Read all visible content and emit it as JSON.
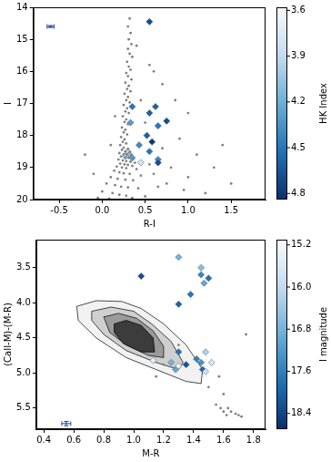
{
  "chart_data": [
    {
      "type": "scatter",
      "xlabel": "R-I",
      "ylabel": "I",
      "xlim": [
        -0.8,
        1.9
      ],
      "ylim": [
        20,
        14
      ],
      "xticks": [
        -0.5,
        {
          "value": 0,
          "label": "0.0"
        },
        0.5,
        {
          "value": 1,
          "label": "1.0"
        },
        1.5
      ],
      "yticks": [
        14,
        15,
        16,
        17,
        18,
        19,
        20
      ],
      "grid": false,
      "series": [
        {
          "color": "#808080",
          "marker": "circle",
          "x": [
            0.32,
            0.3,
            0.33,
            0.31,
            0.34,
            0.3,
            0.32,
            0.35,
            0.29,
            0.31,
            0.33,
            0.28,
            0.3,
            0.34,
            0.27,
            0.31,
            0.29,
            0.33,
            0.26,
            0.3,
            0.28,
            0.32,
            0.25,
            0.29,
            0.27,
            0.31,
            0.24,
            0.28,
            0.26,
            0.3,
            0.23,
            0.27,
            0.25,
            0.29,
            0.22,
            0.26,
            0.24,
            0.28,
            0.21,
            0.25,
            0.3,
            0.23,
            0.27,
            0.32,
            0.2,
            0.25,
            0.29,
            0.34,
            0.22,
            0.27,
            0.31,
            0.36,
            0.19,
            0.24,
            0.28,
            0.33,
            0.38,
            0.21,
            0.26,
            0.3,
            0.35,
            0.17,
            0.23,
            0.28,
            0.4,
            0.14,
            0.2,
            0.25,
            0.32,
            0.45,
            0.1,
            0.18,
            0.27,
            0.36,
            0.05,
            0.15,
            0.22,
            0.3,
            0.42,
            0.0,
            0.12,
            0.2,
            0.28,
            0.5,
            -0.05,
            0.08,
            0.35,
            0.55,
            0.7,
            0.85,
            1.0,
            0.9,
            1.1,
            1.3,
            1.5,
            0.6,
            0.75,
            0.95,
            1.2,
            0.45,
            0.5,
            0.7,
            0.8,
            1.0,
            -0.2,
            -0.1,
            0.15,
            0.1,
            0.6,
            0.4,
            1.4,
            0.55,
            0.65
          ],
          "y": [
            14.35,
            14.6,
            14.8,
            15.0,
            15.15,
            15.3,
            15.45,
            15.55,
            15.7,
            15.85,
            15.95,
            16.05,
            16.15,
            16.25,
            16.35,
            16.45,
            16.55,
            16.62,
            16.7,
            16.8,
            16.9,
            16.97,
            17.05,
            17.15,
            17.25,
            17.3,
            17.4,
            17.5,
            17.58,
            17.65,
            17.75,
            17.82,
            17.9,
            17.97,
            18.05,
            18.12,
            18.2,
            18.25,
            18.3,
            18.38,
            18.42,
            18.45,
            18.5,
            18.52,
            18.55,
            18.58,
            18.6,
            18.62,
            18.65,
            18.68,
            18.7,
            18.72,
            18.75,
            18.78,
            18.8,
            18.82,
            18.85,
            18.88,
            18.9,
            18.92,
            18.95,
            18.97,
            19.0,
            19.02,
            19.05,
            19.1,
            19.15,
            19.18,
            19.2,
            19.25,
            19.3,
            19.35,
            19.38,
            19.4,
            19.5,
            19.55,
            19.6,
            19.62,
            19.65,
            19.75,
            19.8,
            19.85,
            19.88,
            19.9,
            19.95,
            19.97,
            19.95,
            15.8,
            16.4,
            16.9,
            17.3,
            18.1,
            18.6,
            19.0,
            19.5,
            19.2,
            19.5,
            19.7,
            19.8,
            16.9,
            17.6,
            18.4,
            19.0,
            19.3,
            18.6,
            19.2,
            17.4,
            18.3,
            16.0,
            15.2,
            18.3,
            18.9,
            19.6
          ]
        },
        {
          "marker": "diamond",
          "x": [
            0.55,
            0.35,
            0.33,
            0.55,
            0.62,
            0.65,
            0.75,
            0.52,
            0.43,
            0.58,
            0.55,
            0.3,
            0.32,
            0.35,
            0.65,
            0.65,
            0.27,
            0.45
          ],
          "y": [
            14.45,
            17.1,
            17.6,
            17.3,
            17.1,
            17.7,
            17.55,
            18.0,
            18.3,
            18.2,
            18.5,
            18.5,
            18.6,
            18.7,
            18.75,
            18.85,
            18.65,
            18.85
          ],
          "color_values": [
            4.7,
            4.5,
            4.3,
            4.6,
            4.6,
            4.5,
            4.7,
            4.6,
            4.4,
            4.8,
            4.5,
            3.9,
            4.1,
            4.3,
            4.4,
            4.7,
            4.0,
            3.8
          ]
        }
      ],
      "error_bar": {
        "x": -0.6,
        "y": 14.6,
        "xerr": 0.04,
        "yerr": 0.03
      },
      "colorbar": {
        "label": "HK Index",
        "range": [
          4.84,
          3.58
        ],
        "ticks": [
          3.6,
          3.9,
          4.2,
          4.5,
          4.8
        ],
        "colors": [
          "#f7fbff",
          "#c6dbef",
          "#6baed6",
          "#2171b5",
          "#08306b"
        ]
      }
    },
    {
      "type": "scatter",
      "xlabel": "M-R",
      "ylabel": "(CaII-M)-(M-R)",
      "xlim": [
        0.35,
        1.88
      ],
      "ylim": [
        5.8,
        3.1
      ],
      "xticks": [
        0.4,
        0.6,
        0.8,
        {
          "value": 1,
          "label": "1.0"
        },
        1.2,
        1.4,
        1.6,
        1.8
      ],
      "yticks": [
        3.5,
        {
          "value": 4,
          "label": "4.0"
        },
        4.5,
        {
          "value": 5,
          "label": "5.0"
        },
        5.5
      ],
      "grid": false,
      "contours": [
        {
          "color": "#f2f2f2",
          "x": [
            0.62,
            0.75,
            0.92,
            1.05,
            1.2,
            1.35,
            1.46,
            1.45,
            1.35,
            1.15,
            0.95,
            0.75,
            0.63,
            0.62
          ],
          "y": [
            4.05,
            3.97,
            3.98,
            4.08,
            4.3,
            4.6,
            4.95,
            5.15,
            5.12,
            4.95,
            4.78,
            4.5,
            4.25,
            4.05
          ]
        },
        {
          "color": "#cfcfcf",
          "x": [
            0.72,
            0.85,
            1.0,
            1.12,
            1.25,
            1.33,
            1.3,
            1.15,
            0.95,
            0.8,
            0.72,
            0.72
          ],
          "y": [
            4.12,
            4.06,
            4.12,
            4.3,
            4.55,
            4.85,
            4.95,
            4.85,
            4.68,
            4.45,
            4.25,
            4.12
          ]
        },
        {
          "color": "#9a9a9a",
          "x": [
            0.8,
            0.9,
            1.02,
            1.13,
            1.2,
            1.2,
            1.1,
            0.95,
            0.84,
            0.8
          ],
          "y": [
            4.2,
            4.15,
            4.22,
            4.4,
            4.62,
            4.78,
            4.75,
            4.6,
            4.42,
            4.2
          ]
        },
        {
          "color": "#3c3c3c",
          "x": [
            0.87,
            0.95,
            1.05,
            1.13,
            1.14,
            1.05,
            0.93,
            0.87,
            0.87
          ],
          "y": [
            4.3,
            4.25,
            4.32,
            4.5,
            4.7,
            4.7,
            4.58,
            4.42,
            4.3
          ]
        }
      ],
      "series": [
        {
          "color": "#808080",
          "marker": "circle",
          "x": [
            1.75,
            1.57,
            1.58,
            1.6,
            1.62,
            1.65,
            1.68,
            1.7,
            1.72,
            1.63,
            1.55,
            1.2,
            1.15,
            1.3,
            1.5,
            1.6
          ],
          "y": [
            4.45,
            5.05,
            5.5,
            5.55,
            5.6,
            5.55,
            5.58,
            5.6,
            5.62,
            5.5,
            5.45,
            4.88,
            5.05,
            4.6,
            5.2,
            5.3
          ]
        },
        {
          "marker": "diamond",
          "x": [
            1.3,
            1.05,
            1.45,
            1.45,
            1.5,
            1.47,
            1.38,
            1.3,
            1.3,
            1.42,
            1.45,
            1.25,
            1.28,
            1.46,
            1.48,
            1.35,
            1.13,
            1.3,
            1.48,
            1.52
          ],
          "y": [
            3.35,
            3.62,
            3.5,
            3.6,
            3.65,
            3.72,
            3.88,
            4.02,
            4.7,
            4.8,
            4.85,
            4.85,
            4.95,
            4.95,
            4.98,
            4.88,
            4.82,
            4.9,
            4.7,
            4.85
          ],
          "color_values": [
            16.8,
            18.3,
            16.6,
            17.5,
            17.8,
            17.0,
            17.7,
            18.0,
            17.8,
            17.6,
            17.3,
            16.8,
            17.0,
            17.9,
            15.8,
            18.2,
            15.5,
            15.3,
            16.2,
            15.7
          ]
        }
      ],
      "error_bar": {
        "x": 0.55,
        "y": 5.72,
        "xerr": 0.03,
        "yerr": 0.03
      },
      "colorbar": {
        "label": "I magnitude",
        "range": [
          18.7,
          15.1
        ],
        "ticks": [
          15.2,
          {
            "value": 16,
            "label": "16.0"
          },
          16.8,
          17.6,
          18.4
        ],
        "colors": [
          "#f7fbff",
          "#c6dbef",
          "#6baed6",
          "#2171b5",
          "#08306b"
        ]
      }
    }
  ]
}
